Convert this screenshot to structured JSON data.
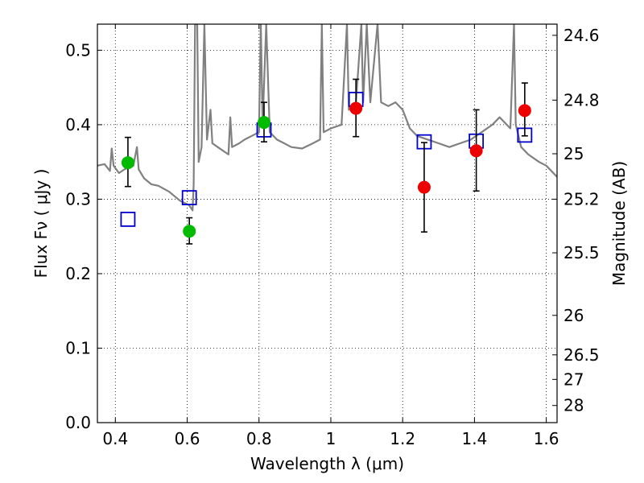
{
  "chart_data": {
    "type": "scatter",
    "xlabel": "Wavelength  λ (μm)",
    "ylabel": "Flux  Fν  ( μJy )",
    "ylabel_right": "Magnitude (AB)",
    "xlim": [
      0.35,
      1.63
    ],
    "ylim": [
      0.0,
      0.535
    ],
    "grid": true,
    "x_ticks": [
      0.4,
      0.6,
      0.8,
      1.0,
      1.2,
      1.4,
      1.6
    ],
    "x_tick_labels": [
      "0.4",
      "0.6",
      "0.8",
      "1",
      "1.2",
      "1.4",
      "1.6"
    ],
    "y_ticks": [
      0.0,
      0.1,
      0.2,
      0.3,
      0.4,
      0.5
    ],
    "y_tick_labels": [
      "0.0",
      "0.1",
      "0.2",
      "0.3",
      "0.4",
      "0.5"
    ],
    "mag_ticks": [
      {
        "label": "24.6",
        "flux": 0.52
      },
      {
        "label": "24.8",
        "flux": 0.433
      },
      {
        "label": "25",
        "flux": 0.361
      },
      {
        "label": "25.2",
        "flux": 0.3
      },
      {
        "label": "25.5",
        "flux": 0.228
      },
      {
        "label": "26",
        "flux": 0.144
      },
      {
        "label": "26.5",
        "flux": 0.091
      },
      {
        "label": "27",
        "flux": 0.058
      },
      {
        "label": "28",
        "flux": 0.023
      }
    ],
    "series": [
      {
        "marker": "square-open",
        "color": "#0000cc",
        "points": [
          {
            "x": 0.435,
            "y": 0.273
          },
          {
            "x": 0.606,
            "y": 0.302
          },
          {
            "x": 0.814,
            "y": 0.393
          },
          {
            "x": 1.07,
            "y": 0.434
          },
          {
            "x": 1.26,
            "y": 0.377
          },
          {
            "x": 1.405,
            "y": 0.378
          },
          {
            "x": 1.54,
            "y": 0.386
          }
        ]
      },
      {
        "marker": "circle",
        "color": "#00bb00",
        "points": [
          {
            "x": 0.435,
            "y": 0.349,
            "err_lo": 0.317,
            "err_hi": 0.383
          },
          {
            "x": 0.606,
            "y": 0.257,
            "err_lo": 0.24,
            "err_hi": 0.275
          },
          {
            "x": 0.814,
            "y": 0.403,
            "err_lo": 0.377,
            "err_hi": 0.43
          }
        ]
      },
      {
        "marker": "circle",
        "color": "#ee0000",
        "points": [
          {
            "x": 1.07,
            "y": 0.422,
            "err_lo": 0.384,
            "err_hi": 0.461
          },
          {
            "x": 1.26,
            "y": 0.316,
            "err_lo": 0.256,
            "err_hi": 0.376
          },
          {
            "x": 1.405,
            "y": 0.365,
            "err_lo": 0.311,
            "err_hi": 0.42
          },
          {
            "x": 1.54,
            "y": 0.419,
            "err_lo": 0.385,
            "err_hi": 0.456
          }
        ]
      },
      {
        "marker": "line",
        "color": "#808080",
        "points": [
          {
            "x": 0.35,
            "y": 0.345
          },
          {
            "x": 0.37,
            "y": 0.347
          },
          {
            "x": 0.385,
            "y": 0.338
          },
          {
            "x": 0.39,
            "y": 0.368
          },
          {
            "x": 0.395,
            "y": 0.345
          },
          {
            "x": 0.41,
            "y": 0.335
          },
          {
            "x": 0.425,
            "y": 0.34
          },
          {
            "x": 0.45,
            "y": 0.345
          },
          {
            "x": 0.46,
            "y": 0.37
          },
          {
            "x": 0.465,
            "y": 0.34
          },
          {
            "x": 0.48,
            "y": 0.328
          },
          {
            "x": 0.5,
            "y": 0.32
          },
          {
            "x": 0.52,
            "y": 0.318
          },
          {
            "x": 0.55,
            "y": 0.31
          },
          {
            "x": 0.58,
            "y": 0.298
          },
          {
            "x": 0.605,
            "y": 0.292
          },
          {
            "x": 0.615,
            "y": 0.285
          },
          {
            "x": 0.618,
            "y": 0.32
          },
          {
            "x": 0.622,
            "y": 0.535
          },
          {
            "x": 0.628,
            "y": 0.535
          },
          {
            "x": 0.632,
            "y": 0.35
          },
          {
            "x": 0.64,
            "y": 0.37
          },
          {
            "x": 0.648,
            "y": 0.535
          },
          {
            "x": 0.655,
            "y": 0.38
          },
          {
            "x": 0.665,
            "y": 0.42
          },
          {
            "x": 0.67,
            "y": 0.375
          },
          {
            "x": 0.685,
            "y": 0.37
          },
          {
            "x": 0.7,
            "y": 0.365
          },
          {
            "x": 0.715,
            "y": 0.36
          },
          {
            "x": 0.72,
            "y": 0.41
          },
          {
            "x": 0.725,
            "y": 0.37
          },
          {
            "x": 0.745,
            "y": 0.375
          },
          {
            "x": 0.76,
            "y": 0.38
          },
          {
            "x": 0.78,
            "y": 0.385
          },
          {
            "x": 0.8,
            "y": 0.39
          },
          {
            "x": 0.805,
            "y": 0.535
          },
          {
            "x": 0.81,
            "y": 0.4
          },
          {
            "x": 0.82,
            "y": 0.535
          },
          {
            "x": 0.83,
            "y": 0.39
          },
          {
            "x": 0.85,
            "y": 0.38
          },
          {
            "x": 0.87,
            "y": 0.375
          },
          {
            "x": 0.89,
            "y": 0.37
          },
          {
            "x": 0.92,
            "y": 0.368
          },
          {
            "x": 0.95,
            "y": 0.375
          },
          {
            "x": 0.97,
            "y": 0.38
          },
          {
            "x": 0.975,
            "y": 0.535
          },
          {
            "x": 0.98,
            "y": 0.39
          },
          {
            "x": 1.0,
            "y": 0.395
          },
          {
            "x": 1.03,
            "y": 0.4
          },
          {
            "x": 1.045,
            "y": 0.535
          },
          {
            "x": 1.05,
            "y": 0.42
          },
          {
            "x": 1.07,
            "y": 0.43
          },
          {
            "x": 1.085,
            "y": 0.535
          },
          {
            "x": 1.09,
            "y": 0.43
          },
          {
            "x": 1.1,
            "y": 0.535
          },
          {
            "x": 1.11,
            "y": 0.43
          },
          {
            "x": 1.13,
            "y": 0.535
          },
          {
            "x": 1.14,
            "y": 0.43
          },
          {
            "x": 1.16,
            "y": 0.425
          },
          {
            "x": 1.18,
            "y": 0.43
          },
          {
            "x": 1.2,
            "y": 0.42
          },
          {
            "x": 1.22,
            "y": 0.395
          },
          {
            "x": 1.24,
            "y": 0.385
          },
          {
            "x": 1.27,
            "y": 0.38
          },
          {
            "x": 1.3,
            "y": 0.375
          },
          {
            "x": 1.33,
            "y": 0.37
          },
          {
            "x": 1.36,
            "y": 0.375
          },
          {
            "x": 1.39,
            "y": 0.38
          },
          {
            "x": 1.42,
            "y": 0.39
          },
          {
            "x": 1.45,
            "y": 0.4
          },
          {
            "x": 1.47,
            "y": 0.41
          },
          {
            "x": 1.49,
            "y": 0.4
          },
          {
            "x": 1.5,
            "y": 0.395
          },
          {
            "x": 1.51,
            "y": 0.535
          },
          {
            "x": 1.515,
            "y": 0.4
          },
          {
            "x": 1.53,
            "y": 0.37
          },
          {
            "x": 1.55,
            "y": 0.36
          },
          {
            "x": 1.58,
            "y": 0.35
          },
          {
            "x": 1.6,
            "y": 0.345
          },
          {
            "x": 1.63,
            "y": 0.33
          }
        ]
      }
    ]
  }
}
